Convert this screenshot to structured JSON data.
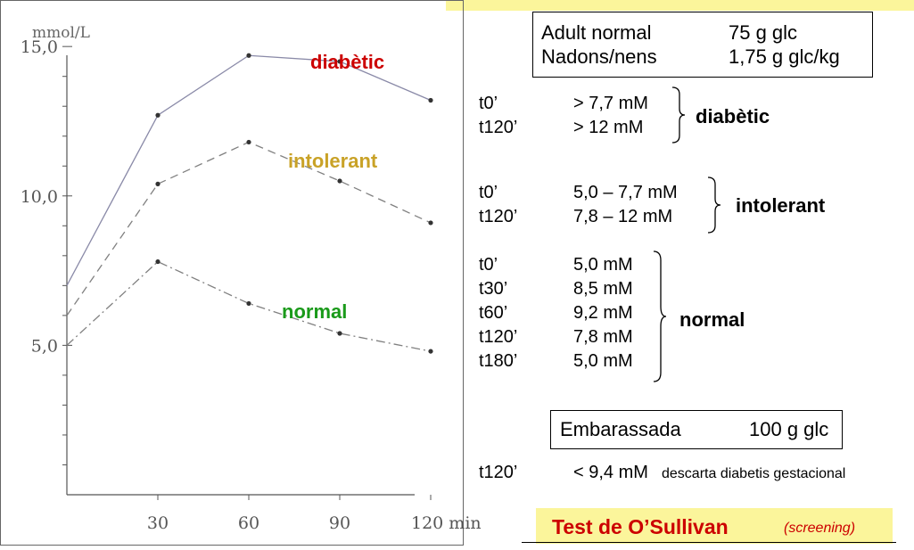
{
  "chart_data": {
    "type": "line",
    "ylabel": "mmol/L",
    "x": [
      0,
      30,
      60,
      90,
      120
    ],
    "xticklabels": [
      "30",
      "60",
      "90",
      "120 min"
    ],
    "xtick_values": [
      30,
      60,
      90,
      120
    ],
    "yticklabels": [
      "15,0",
      "10,0",
      "5,0"
    ],
    "ytick_values": [
      15,
      10,
      5
    ],
    "xlim": [
      0,
      125
    ],
    "ylim": [
      0,
      15.9
    ],
    "series": [
      {
        "name": "diabètic",
        "values": [
          7.0,
          12.7,
          14.7,
          14.5,
          13.2
        ],
        "dash": "",
        "color": "#8a8aa8"
      },
      {
        "name": "intolerant",
        "values": [
          6.0,
          10.4,
          11.8,
          10.5,
          9.1
        ],
        "dash": "9,6",
        "color": "#808080"
      },
      {
        "name": "normal",
        "values": [
          5.0,
          7.8,
          6.4,
          5.4,
          4.8
        ],
        "dash": "10,4,2,4",
        "color": "#808080"
      }
    ],
    "series_labels": {
      "diabetic": "diabètic",
      "intolerant": "intolerant",
      "normal": "normal"
    }
  },
  "dose_box": {
    "rows": [
      {
        "label": "Adult normal",
        "value": "75 g glc"
      },
      {
        "label": "Nadons/nens",
        "value": "1,75 g glc/kg"
      }
    ]
  },
  "diabetic_criteria": {
    "rows": [
      {
        "time": "t0’",
        "value": "> 7,7 mM"
      },
      {
        "time": "t120’",
        "value": "> 12 mM"
      }
    ],
    "label": "diabètic"
  },
  "intolerant_criteria": {
    "rows": [
      {
        "time": "t0’",
        "value": "5,0 – 7,7 mM"
      },
      {
        "time": "t120’",
        "value": "7,8 – 12 mM"
      }
    ],
    "label": "intolerant"
  },
  "normal_criteria": {
    "rows": [
      {
        "time": "t0’",
        "value": "5,0 mM"
      },
      {
        "time": "t30’",
        "value": "8,5 mM"
      },
      {
        "time": "t60’",
        "value": "9,2 mM"
      },
      {
        "time": "t120’",
        "value": "7,8 mM"
      },
      {
        "time": "t180’",
        "value": "5,0 mM"
      }
    ],
    "label": "normal"
  },
  "pregnant_box": {
    "label": "Embarassada",
    "value": "100 g glc"
  },
  "pregnant_criterion": {
    "time": "t120’",
    "value": "< 9,4 mM",
    "note": "descarta diabetis gestacional"
  },
  "osullivan": {
    "title": "Test de O’Sullivan",
    "subtitle": "(screening)"
  }
}
